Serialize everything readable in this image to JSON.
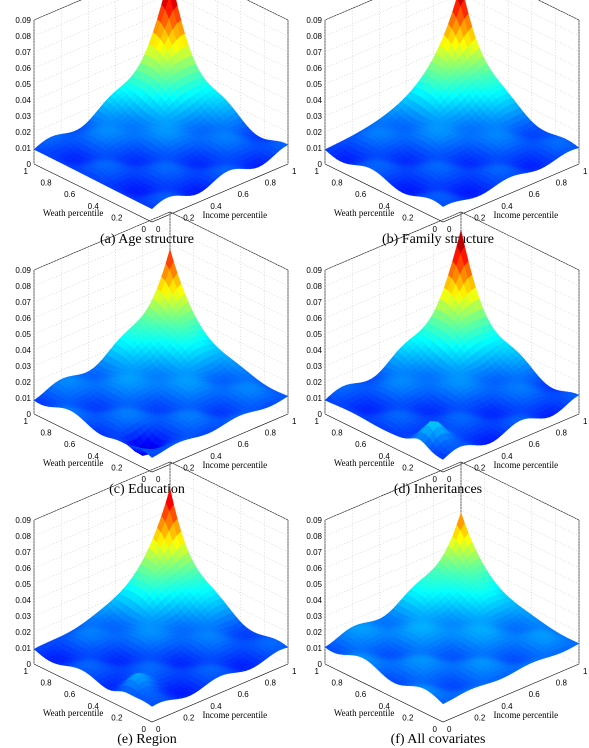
{
  "chart_data": [
    {
      "type": "surface3d",
      "caption": "(a) Age structure",
      "xlabel": "Income percentile",
      "ylabel": "Weath percentile",
      "x": [
        0,
        0.2,
        0.4,
        0.6,
        0.8,
        1
      ],
      "y": [
        0,
        0.2,
        0.4,
        0.6,
        0.8,
        1
      ],
      "zlim": [
        0,
        0.09
      ],
      "zticks": [
        "0",
        "0.01",
        "0.02",
        "0.03",
        "0.04",
        "0.05",
        "0.06",
        "0.07",
        "0.08",
        "0.09"
      ],
      "xticks": [
        "0",
        "0.2",
        "0.4",
        "0.6",
        "0.8",
        "1"
      ],
      "yticks": [
        "0",
        "0.2",
        "0.4",
        "0.6",
        "0.8",
        "1"
      ],
      "peak": {
        "x": 1,
        "y": 1,
        "z": 0.081
      },
      "base_level": 0.008,
      "dip": null
    },
    {
      "type": "surface3d",
      "caption": "(b) Family structure",
      "xlabel": "Income percentile",
      "ylabel": "Weath percentile",
      "x": [
        0,
        0.2,
        0.4,
        0.6,
        0.8,
        1
      ],
      "y": [
        0,
        0.2,
        0.4,
        0.6,
        0.8,
        1
      ],
      "zlim": [
        0,
        0.09
      ],
      "zticks": [
        "0",
        "0.01",
        "0.02",
        "0.03",
        "0.04",
        "0.05",
        "0.06",
        "0.07",
        "0.08",
        "0.09"
      ],
      "xticks": [
        "0",
        "0.2",
        "0.4",
        "0.6",
        "0.8",
        "1"
      ],
      "yticks": [
        "0",
        "0.2",
        "0.4",
        "0.6",
        "0.8",
        "1"
      ],
      "peak": {
        "x": 1,
        "y": 1,
        "z": 0.077
      },
      "base_level": 0.008,
      "dip": null
    },
    {
      "type": "surface3d",
      "caption": "(c) Education",
      "xlabel": "Income percentile",
      "ylabel": "Weath percentile",
      "x": [
        0,
        0.2,
        0.4,
        0.6,
        0.8,
        1
      ],
      "y": [
        0,
        0.2,
        0.4,
        0.6,
        0.8,
        1
      ],
      "zlim": [
        0,
        0.09
      ],
      "zticks": [
        "0",
        "0.01",
        "0.02",
        "0.03",
        "0.04",
        "0.05",
        "0.06",
        "0.07",
        "0.08",
        "0.09"
      ],
      "xticks": [
        "0",
        "0.2",
        "0.4",
        "0.6",
        "0.8",
        "1"
      ],
      "yticks": [
        "0",
        "0.2",
        "0.4",
        "0.6",
        "0.8",
        "1"
      ],
      "peak": {
        "x": 1,
        "y": 1,
        "z": 0.066
      },
      "base_level": 0.01,
      "dip": {
        "x": 0.1,
        "y": 0.2,
        "z": -0.01
      }
    },
    {
      "type": "surface3d",
      "caption": "(d) Inheritances",
      "xlabel": "Income percentile",
      "ylabel": "Weath percentile",
      "x": [
        0,
        0.2,
        0.4,
        0.6,
        0.8,
        1
      ],
      "y": [
        0,
        0.2,
        0.4,
        0.6,
        0.8,
        1
      ],
      "zlim": [
        0,
        0.09
      ],
      "zticks": [
        "0",
        "0.01",
        "0.02",
        "0.03",
        "0.04",
        "0.05",
        "0.06",
        "0.07",
        "0.08",
        "0.09"
      ],
      "xticks": [
        "0",
        "0.2",
        "0.4",
        "0.6",
        "0.8",
        "1"
      ],
      "yticks": [
        "0",
        "0.2",
        "0.4",
        "0.6",
        "0.8",
        "1"
      ],
      "peak": {
        "x": 1,
        "y": 1,
        "z": 0.076
      },
      "base_level": 0.008,
      "dip": {
        "x": 0.1,
        "y": 0.2,
        "z": 0.015
      }
    },
    {
      "type": "surface3d",
      "caption": "(e) Region",
      "xlabel": "Income percentile",
      "ylabel": "Weath percentile",
      "x": [
        0,
        0.2,
        0.4,
        0.6,
        0.8,
        1
      ],
      "y": [
        0,
        0.2,
        0.4,
        0.6,
        0.8,
        1
      ],
      "zlim": [
        0,
        0.09
      ],
      "zticks": [
        "0",
        "0.01",
        "0.02",
        "0.03",
        "0.04",
        "0.05",
        "0.06",
        "0.07",
        "0.08",
        "0.09"
      ],
      "xticks": [
        "0",
        "0.2",
        "0.4",
        "0.6",
        "0.8",
        "1"
      ],
      "yticks": [
        "0",
        "0.2",
        "0.4",
        "0.6",
        "0.8",
        "1"
      ],
      "peak": {
        "x": 1,
        "y": 1,
        "z": 0.073
      },
      "base_level": 0.008,
      "dip": {
        "x": 0.1,
        "y": 0.25,
        "z": 0.01
      }
    },
    {
      "type": "surface3d",
      "caption": "(f) All covariates",
      "xlabel": "Income percentile",
      "ylabel": "Weath percentile",
      "x": [
        0,
        0.2,
        0.4,
        0.6,
        0.8,
        1
      ],
      "y": [
        0,
        0.2,
        0.4,
        0.6,
        0.8,
        1
      ],
      "zlim": [
        0,
        0.09
      ],
      "zticks": [
        "0",
        "0.01",
        "0.02",
        "0.03",
        "0.04",
        "0.05",
        "0.06",
        "0.07",
        "0.08",
        "0.09"
      ],
      "xticks": [
        "0",
        "0.2",
        "0.4",
        "0.6",
        "0.8",
        "1"
      ],
      "yticks": [
        "0",
        "0.2",
        "0.4",
        "0.6",
        "0.8",
        "1"
      ],
      "peak": {
        "x": 1,
        "y": 1,
        "z": 0.058
      },
      "base_level": 0.012,
      "dip": null
    }
  ]
}
